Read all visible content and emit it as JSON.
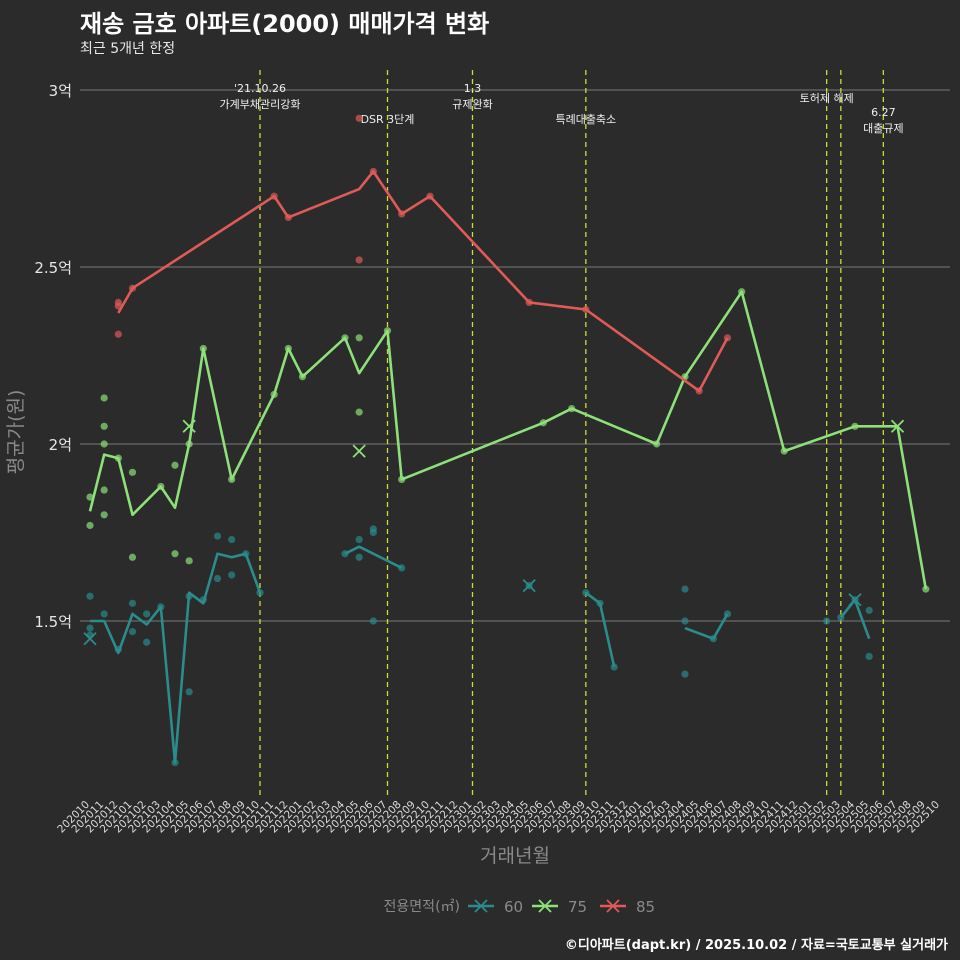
{
  "header": {
    "title": "재송 금호 아파트(2000) 매매가격 변화",
    "subtitle": "최근 5개년 한정",
    "caption": "©디아파트(dapt.kr) / 2025.10.02 / 자료=국토교통부 실거래가"
  },
  "colors": {
    "background": "#2b2b2b",
    "grid": "#6a6a6a",
    "vline": "#cddc39",
    "s60": "#2a8c8c",
    "s75": "#8ee07a",
    "s85": "#e05a5a"
  },
  "chart_data": {
    "type": "line",
    "title": "재송 금호 아파트(2000) 매매가격 변화",
    "subtitle": "최근 5개년 한정",
    "xlabel": "거래년월",
    "ylabel": "평균가(원)",
    "ylim": [
      1.0,
      3.05
    ],
    "y_ticks": [
      1.5,
      2.0,
      2.5,
      3.0
    ],
    "y_tick_labels": [
      "1.5억",
      "2억",
      "2.5억",
      "3억"
    ],
    "categories": [
      "202010",
      "202011",
      "202012",
      "202101",
      "202102",
      "202103",
      "202104",
      "202105",
      "202106",
      "202107",
      "202108",
      "202109",
      "202110",
      "202111",
      "202112",
      "202201",
      "202202",
      "202203",
      "202204",
      "202205",
      "202206",
      "202207",
      "202208",
      "202209",
      "202210",
      "202211",
      "202212",
      "202301",
      "202302",
      "202303",
      "202304",
      "202305",
      "202306",
      "202307",
      "202308",
      "202309",
      "202310",
      "202311",
      "202312",
      "202401",
      "202402",
      "202403",
      "202404",
      "202405",
      "202406",
      "202407",
      "202408",
      "202409",
      "202410",
      "202411",
      "202412",
      "202501",
      "202502",
      "202503",
      "202504",
      "202505",
      "202506",
      "202507",
      "202508",
      "202509",
      "202510"
    ],
    "legend_title": "전용면적(㎡)",
    "legend_position": "bottom",
    "series": [
      {
        "name": "60",
        "color": "#2a8c8c",
        "line": [
          [
            [
              "202010",
              1.5
            ],
            [
              "202011",
              1.5
            ],
            [
              "202012",
              1.41
            ],
            [
              "202101",
              1.52
            ],
            [
              "202102",
              1.49
            ],
            [
              "202103",
              1.54
            ],
            [
              "202104",
              1.1
            ],
            [
              "202105",
              1.58
            ],
            [
              "202106",
              1.55
            ],
            [
              "202107",
              1.69
            ],
            [
              "202108",
              1.68
            ],
            [
              "202109",
              1.69
            ],
            [
              "202110",
              1.58
            ]
          ],
          [
            [
              "202204",
              1.69
            ],
            [
              "202205",
              1.71
            ],
            [
              "202206",
              1.69
            ],
            [
              "202208",
              1.65
            ]
          ],
          [
            [
              "202309",
              1.58
            ],
            [
              "202310",
              1.55
            ],
            [
              "202311",
              1.37
            ]
          ],
          [
            [
              "202404",
              1.48
            ],
            [
              "202406",
              1.45
            ],
            [
              "202407",
              1.52
            ]
          ],
          [
            [
              "202503",
              1.51
            ],
            [
              "202504",
              1.56
            ],
            [
              "202505",
              1.45
            ]
          ]
        ],
        "points": [
          [
            "202010",
            1.57
          ],
          [
            "202010",
            1.48
          ],
          [
            "202010",
            1.46
          ],
          [
            "202011",
            1.52
          ],
          [
            "202012",
            1.42
          ],
          [
            "202101",
            1.55
          ],
          [
            "202101",
            1.47
          ],
          [
            "202102",
            1.52
          ],
          [
            "202102",
            1.44
          ],
          [
            "202103",
            1.54
          ],
          [
            "202104",
            1.1
          ],
          [
            "202105",
            1.57
          ],
          [
            "202105",
            1.3
          ],
          [
            "202106",
            1.56
          ],
          [
            "202107",
            1.74
          ],
          [
            "202107",
            1.62
          ],
          [
            "202108",
            1.73
          ],
          [
            "202108",
            1.63
          ],
          [
            "202109",
            1.69
          ],
          [
            "202110",
            1.58
          ],
          [
            "202204",
            1.69
          ],
          [
            "202205",
            1.73
          ],
          [
            "202205",
            1.68
          ],
          [
            "202206",
            1.76
          ],
          [
            "202206",
            1.75
          ],
          [
            "202206",
            1.5
          ],
          [
            "202208",
            1.65
          ],
          [
            "202305",
            1.6
          ],
          [
            "202309",
            1.58
          ],
          [
            "202310",
            1.55
          ],
          [
            "202311",
            1.37
          ],
          [
            "202404",
            1.59
          ],
          [
            "202404",
            1.5
          ],
          [
            "202404",
            1.35
          ],
          [
            "202406",
            1.45
          ],
          [
            "202407",
            1.52
          ],
          [
            "202502",
            1.5
          ],
          [
            "202503",
            1.51
          ],
          [
            "202504",
            1.56
          ],
          [
            "202505",
            1.53
          ],
          [
            "202505",
            1.4
          ]
        ],
        "crosses": [
          [
            "202010",
            1.45
          ],
          [
            "202305",
            1.6
          ],
          [
            "202504",
            1.56
          ]
        ]
      },
      {
        "name": "75",
        "color": "#8ee07a",
        "line": [
          [
            [
              "202010",
              1.81
            ],
            [
              "202011",
              1.97
            ],
            [
              "202012",
              1.96
            ],
            [
              "202101",
              1.8
            ],
            [
              "202103",
              1.88
            ],
            [
              "202104",
              1.82
            ],
            [
              "202105",
              2.0
            ],
            [
              "202106",
              2.27
            ],
            [
              "202108",
              1.9
            ],
            [
              "202111",
              2.14
            ],
            [
              "202112",
              2.27
            ],
            [
              "202201",
              2.19
            ],
            [
              "202204",
              2.3
            ],
            [
              "202205",
              2.2
            ],
            [
              "202207",
              2.32
            ],
            [
              "202208",
              1.9
            ],
            [
              "202306",
              2.06
            ],
            [
              "202308",
              2.1
            ],
            [
              "202402",
              2.0
            ],
            [
              "202404",
              2.19
            ],
            [
              "202408",
              2.43
            ],
            [
              "202411",
              1.98
            ],
            [
              "202504",
              2.05
            ],
            [
              "202507",
              2.05
            ],
            [
              "202509",
              1.59
            ]
          ]
        ],
        "points": [
          [
            "202010",
            1.85
          ],
          [
            "202010",
            1.77
          ],
          [
            "202011",
            2.13
          ],
          [
            "202011",
            2.05
          ],
          [
            "202011",
            2.0
          ],
          [
            "202011",
            1.87
          ],
          [
            "202011",
            1.8
          ],
          [
            "202012",
            1.96
          ],
          [
            "202101",
            1.92
          ],
          [
            "202101",
            1.68
          ],
          [
            "202103",
            1.88
          ],
          [
            "202104",
            1.94
          ],
          [
            "202104",
            1.69
          ],
          [
            "202105",
            2.0
          ],
          [
            "202105",
            1.67
          ],
          [
            "202106",
            2.27
          ],
          [
            "202108",
            1.9
          ],
          [
            "202111",
            2.14
          ],
          [
            "202112",
            2.27
          ],
          [
            "202201",
            2.19
          ],
          [
            "202204",
            2.3
          ],
          [
            "202205",
            2.3
          ],
          [
            "202205",
            2.09
          ],
          [
            "202207",
            2.32
          ],
          [
            "202208",
            1.9
          ],
          [
            "202306",
            2.06
          ],
          [
            "202308",
            2.1
          ],
          [
            "202402",
            2.0
          ],
          [
            "202404",
            2.19
          ],
          [
            "202408",
            2.43
          ],
          [
            "202411",
            1.98
          ],
          [
            "202504",
            2.05
          ],
          [
            "202509",
            1.59
          ]
        ],
        "crosses": [
          [
            "202105",
            2.05
          ],
          [
            "202205",
            1.98
          ],
          [
            "202507",
            2.05
          ]
        ]
      },
      {
        "name": "85",
        "color": "#e05a5a",
        "line": [
          [
            [
              "202012",
              2.37
            ],
            [
              "202101",
              2.44
            ],
            [
              "202111",
              2.7
            ],
            [
              "202112",
              2.64
            ],
            [
              "202205",
              2.72
            ],
            [
              "202206",
              2.77
            ],
            [
              "202208",
              2.65
            ],
            [
              "202210",
              2.7
            ],
            [
              "202305",
              2.4
            ],
            [
              "202309",
              2.38
            ],
            [
              "202405",
              2.15
            ],
            [
              "202407",
              2.3
            ]
          ]
        ],
        "points": [
          [
            "202012",
            2.4
          ],
          [
            "202012",
            2.39
          ],
          [
            "202012",
            2.31
          ],
          [
            "202101",
            2.44
          ],
          [
            "202111",
            2.7
          ],
          [
            "202112",
            2.64
          ],
          [
            "202205",
            2.92
          ],
          [
            "202205",
            2.52
          ],
          [
            "202206",
            2.77
          ],
          [
            "202208",
            2.65
          ],
          [
            "202210",
            2.7
          ],
          [
            "202305",
            2.4
          ],
          [
            "202309",
            2.38
          ],
          [
            "202405",
            2.15
          ],
          [
            "202407",
            2.3
          ]
        ],
        "crosses": []
      }
    ],
    "annotations": [
      {
        "month": "202110",
        "lines": [
          "'21.10.26",
          "가계부채관리강화"
        ]
      },
      {
        "month": "202207",
        "lines": [
          "DSR 3단계"
        ]
      },
      {
        "month": "202301",
        "lines": [
          "1.3",
          "규제완화"
        ]
      },
      {
        "month": "202309",
        "lines": [
          "특례대출축소"
        ]
      },
      {
        "month": "202502",
        "lines": [
          "토허제 해제"
        ]
      },
      {
        "month": "202503",
        "lines": []
      },
      {
        "month": "202506",
        "lines": [
          "6.27",
          "대출규제"
        ]
      }
    ]
  }
}
